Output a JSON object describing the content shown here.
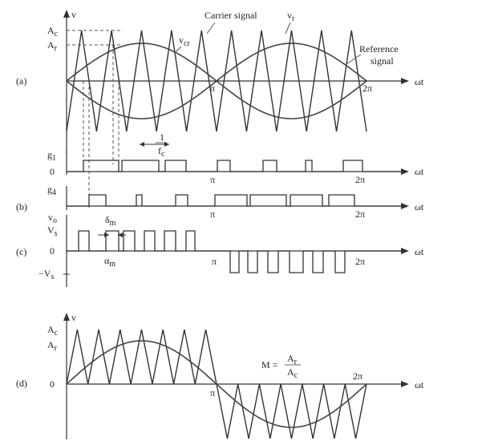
{
  "panels": {
    "a": {
      "tag": "(a)",
      "y_label": "v",
      "carrier_peak_label": "A",
      "carrier_peak_sub": "c",
      "reference_peak_label": "A",
      "reference_peak_sub": "r",
      "carrier_signal_label": "Carrier signal",
      "vr_label": "v",
      "vr_sub": "r",
      "vcr_label": "v",
      "vcr_sub": "cr",
      "reference_signal_label_1": "Reference",
      "reference_signal_label_2": "signal",
      "period_num": "1",
      "period_den": "f",
      "period_den_sub": "c",
      "pi_label": "π",
      "two_pi_label": "2π",
      "x_label": "ωt"
    },
    "g1": {
      "label": "g",
      "sub": "1",
      "zero": "0",
      "pi_label": "π",
      "two_pi_label": "2π",
      "x_label": "ωt"
    },
    "b": {
      "tag": "(b)",
      "label": "g",
      "sub": "4",
      "pi_label": "π",
      "two_pi_label": "2π",
      "x_label": "ωt"
    },
    "c": {
      "tag": "(c)",
      "y_label": "v",
      "y_sub": "o",
      "vs_label": "V",
      "vs_sub": "s",
      "delta_label": "δ",
      "delta_sub": "m",
      "alpha_label": "α",
      "alpha_sub": "m",
      "zero": "0",
      "neg_vs_label": "−V",
      "neg_vs_sub": "s",
      "pi_label": "π",
      "two_pi_label": "2π",
      "x_label": "ωt"
    },
    "d": {
      "tag": "(d)",
      "y_label": "v",
      "carrier_peak_label": "A",
      "carrier_peak_sub": "c",
      "reference_peak_label": "A",
      "reference_peak_sub": "r",
      "zero": "0",
      "mod_lhs": "M =",
      "mod_num": "A",
      "mod_num_sub": "r",
      "mod_den": "A",
      "mod_den_sub": "c",
      "pi_label": "π",
      "two_pi_label": "2π",
      "x_label": "ωt"
    }
  }
}
